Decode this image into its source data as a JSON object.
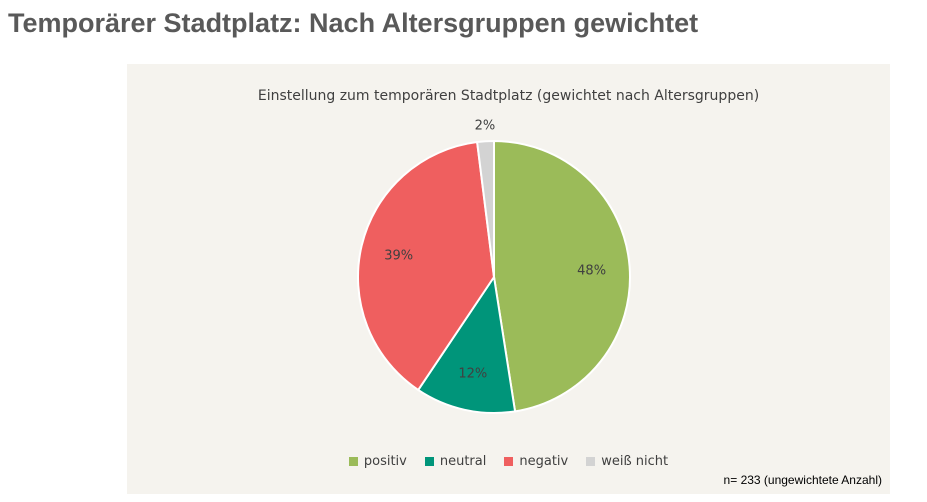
{
  "page": {
    "title": "Temporärer Stadtplatz: Nach Altersgruppen gewichtet",
    "footnote": "n= 233 (ungewichtete Anzahl)"
  },
  "chart_data": {
    "type": "pie",
    "title": "Einstellung zum temporären Stadtplatz (gewichtet nach Altersgruppen)",
    "categories": [
      "positiv",
      "neutral",
      "negativ",
      "weiß nicht"
    ],
    "values": [
      48,
      12,
      39,
      2
    ],
    "labels": [
      "48%",
      "12%",
      "39%",
      "2%"
    ],
    "colors": [
      "#9bbb59",
      "#00957a",
      "#ef5f5f",
      "#d3d3d3"
    ],
    "legend_position": "bottom"
  }
}
